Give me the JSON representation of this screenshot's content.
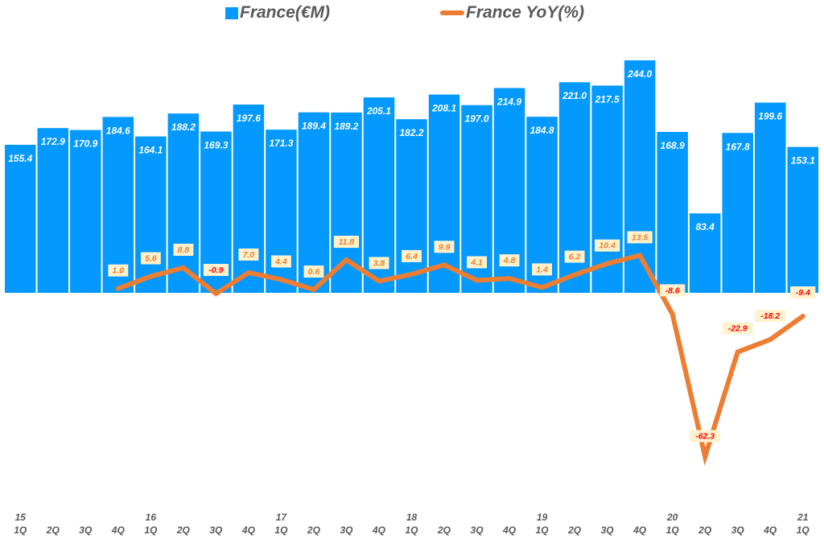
{
  "legend": {
    "bar_label": "France(€M)",
    "line_label": "France YoY(%)"
  },
  "colors": {
    "bar": "#0399FF",
    "line": "#ED7D31",
    "label_bg": "#FFF2CC",
    "positive_label": "#ED7D31",
    "negative_label": "#FF0000",
    "axis_text": "#595959"
  },
  "chart_data": {
    "type": "bar+line",
    "title": "",
    "xlabel": "",
    "ylabel": "",
    "legend_position": "top",
    "grid": false,
    "categories": [
      "15 1Q",
      "2Q",
      "3Q",
      "4Q",
      "16 1Q",
      "2Q",
      "3Q",
      "4Q",
      "17 1Q",
      "2Q",
      "3Q",
      "4Q",
      "18 1Q",
      "2Q",
      "3Q",
      "4Q",
      "19 1Q",
      "2Q",
      "3Q",
      "4Q",
      "20 1Q",
      "2Q",
      "3Q",
      "4Q",
      "21 1Q"
    ],
    "x_quarter_labels": [
      "1Q",
      "2Q",
      "3Q",
      "4Q",
      "1Q",
      "2Q",
      "3Q",
      "4Q",
      "1Q",
      "2Q",
      "3Q",
      "4Q",
      "1Q",
      "2Q",
      "3Q",
      "4Q",
      "1Q",
      "2Q",
      "3Q",
      "4Q",
      "1Q",
      "2Q",
      "3Q",
      "4Q",
      "1Q"
    ],
    "x_year_labels": {
      "0": "15",
      "4": "16",
      "8": "17",
      "12": "18",
      "16": "19",
      "20": "20",
      "24": "21"
    },
    "series": [
      {
        "name": "France(€M)",
        "type": "bar",
        "axis": "primary",
        "values": [
          155.4,
          172.9,
          170.9,
          184.6,
          164.1,
          188.2,
          169.3,
          197.6,
          171.3,
          189.4,
          189.2,
          205.1,
          182.2,
          208.1,
          197.0,
          214.9,
          184.8,
          221.0,
          217.5,
          244.0,
          168.9,
          83.4,
          167.8,
          199.6,
          153.1
        ]
      },
      {
        "name": "France YoY(%)",
        "type": "line",
        "axis": "secondary",
        "values": [
          null,
          null,
          null,
          1.0,
          5.6,
          8.8,
          -0.9,
          7.0,
          4.4,
          0.6,
          11.8,
          3.8,
          6.4,
          9.9,
          4.1,
          4.8,
          1.4,
          6.2,
          10.4,
          13.5,
          -8.6,
          -62.3,
          -22.9,
          -18.2,
          -9.4
        ]
      }
    ]
  }
}
